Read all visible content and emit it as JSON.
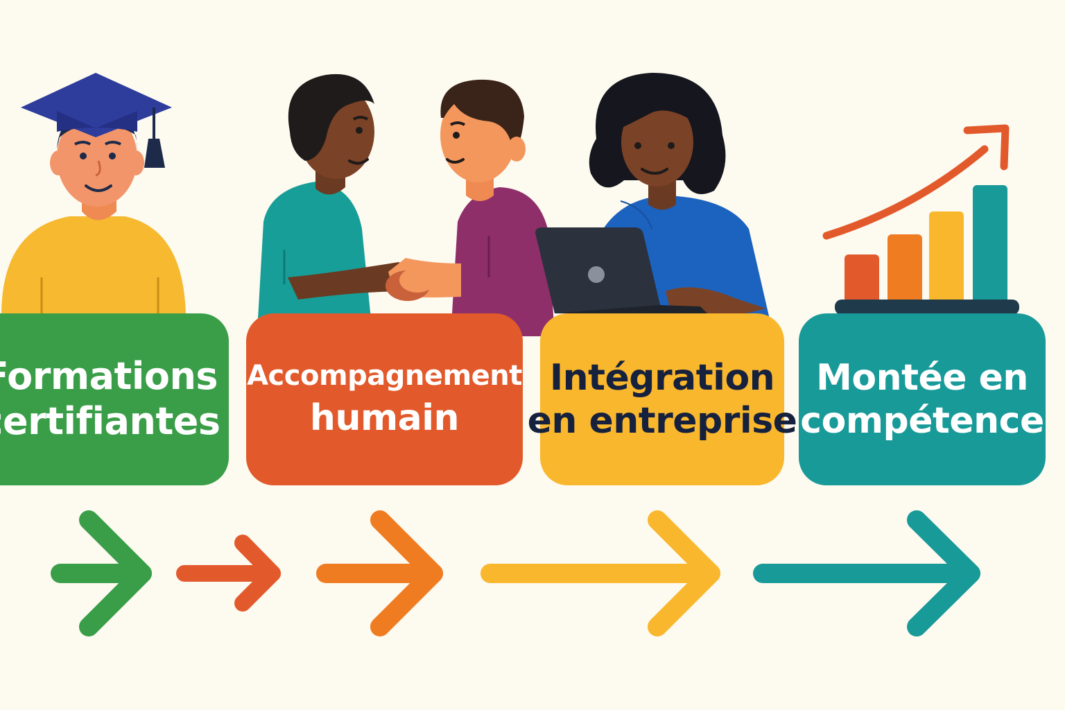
{
  "steps": [
    {
      "line1": "Formations",
      "line2": "certifiantes",
      "color": "#3a9e49",
      "icon": "graduate-student-illustration"
    },
    {
      "line1": "Accompagnement",
      "line2": "humain",
      "color": "#e25a2c",
      "icon": "handshake-illustration"
    },
    {
      "line1": "Intégration",
      "line2": "en entreprise",
      "color": "#f9b72e",
      "icon": "woman-laptop-illustration"
    },
    {
      "line1": "Montée en",
      "line2": "compétence",
      "color": "#189a99",
      "icon": "growth-bar-chart-illustration"
    }
  ],
  "arrows": [
    {
      "color": "#3a9e49",
      "icon": "arrow-right-icon"
    },
    {
      "color": "#e25a2c",
      "icon": "arrow-right-icon"
    },
    {
      "color": "#f07c22",
      "icon": "arrow-right-icon"
    },
    {
      "color": "#f9b72e",
      "icon": "arrow-right-icon"
    },
    {
      "color": "#189a99",
      "icon": "arrow-right-icon"
    }
  ],
  "palette": {
    "background": "#fdfaf0",
    "dark_text": "#16213d"
  }
}
